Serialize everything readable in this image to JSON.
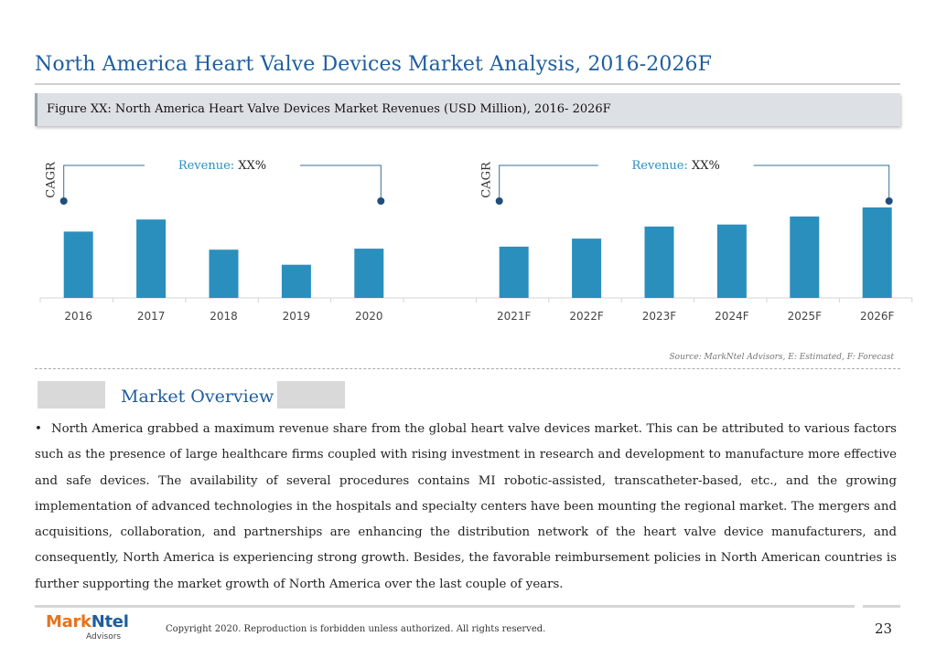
{
  "page_title": "North America Heart Valve Devices Market Analysis, 2016-2026F",
  "figure_caption": "Figure XX: North America Heart Valve Devices Market Revenues (USD Million), 2016- 2026F",
  "chart_data": [
    {
      "type": "bar",
      "categories": [
        "2016",
        "2017",
        "2018",
        "2019",
        "2020"
      ],
      "values": [
        66,
        78,
        48,
        33,
        49
      ],
      "title": "",
      "xlabel": "",
      "ylabel": "",
      "ylim": [
        0,
        100
      ],
      "annotations": [
        {
          "label": "Revenue:",
          "value": "XX%"
        },
        {
          "label": "CAGR"
        }
      ],
      "color": "#2a8fbd",
      "grid": false
    },
    {
      "type": "bar",
      "categories": [
        "2021F",
        "2022F",
        "2023F",
        "2024F",
        "2025F",
        "2026F"
      ],
      "values": [
        51,
        59,
        71,
        73,
        81,
        90
      ],
      "title": "",
      "xlabel": "",
      "ylabel": "",
      "ylim": [
        0,
        100
      ],
      "annotations": [
        {
          "label": "Revenue:",
          "value": "XX%"
        },
        {
          "label": "CAGR"
        }
      ],
      "color": "#2a8fbd",
      "grid": false
    }
  ],
  "source_note": "Source: MarkNtel Advisors, E: Estimated, F: Forecast",
  "overview_title": "Market Overview",
  "bullet_symbol": "•",
  "overview_text": "North America grabbed a maximum revenue share from the global heart valve devices market. This can be attributed to various factors such as the presence of large healthcare firms coupled with rising investment in research and development to manufacture more effective and safe devices. The availability of several procedures contains MI robotic-assisted, transcatheter-based, etc., and the growing implementation of advanced technologies in the hospitals and specialty centers have been mounting the regional market. The mergers and acquisitions, collaboration, and partnerships are enhancing the distribution network of the heart valve device manufacturers, and consequently, North America is experiencing strong growth. Besides, the favorable reimbursement policies in North American countries is further supporting the market growth of North America over the last couple of years.",
  "logo": {
    "part1": "Mark",
    "part2": "Ntel",
    "sub": "Advisors"
  },
  "copyright": "Copyright 2020. Reproduction is forbidden unless authorized. All rights reserved.",
  "page_number": "23",
  "colors": {
    "title": "#1f5d9e",
    "bar": "#2a8fbd",
    "annotation_line": "#3a6d96",
    "logo_orange": "#e8731d"
  }
}
